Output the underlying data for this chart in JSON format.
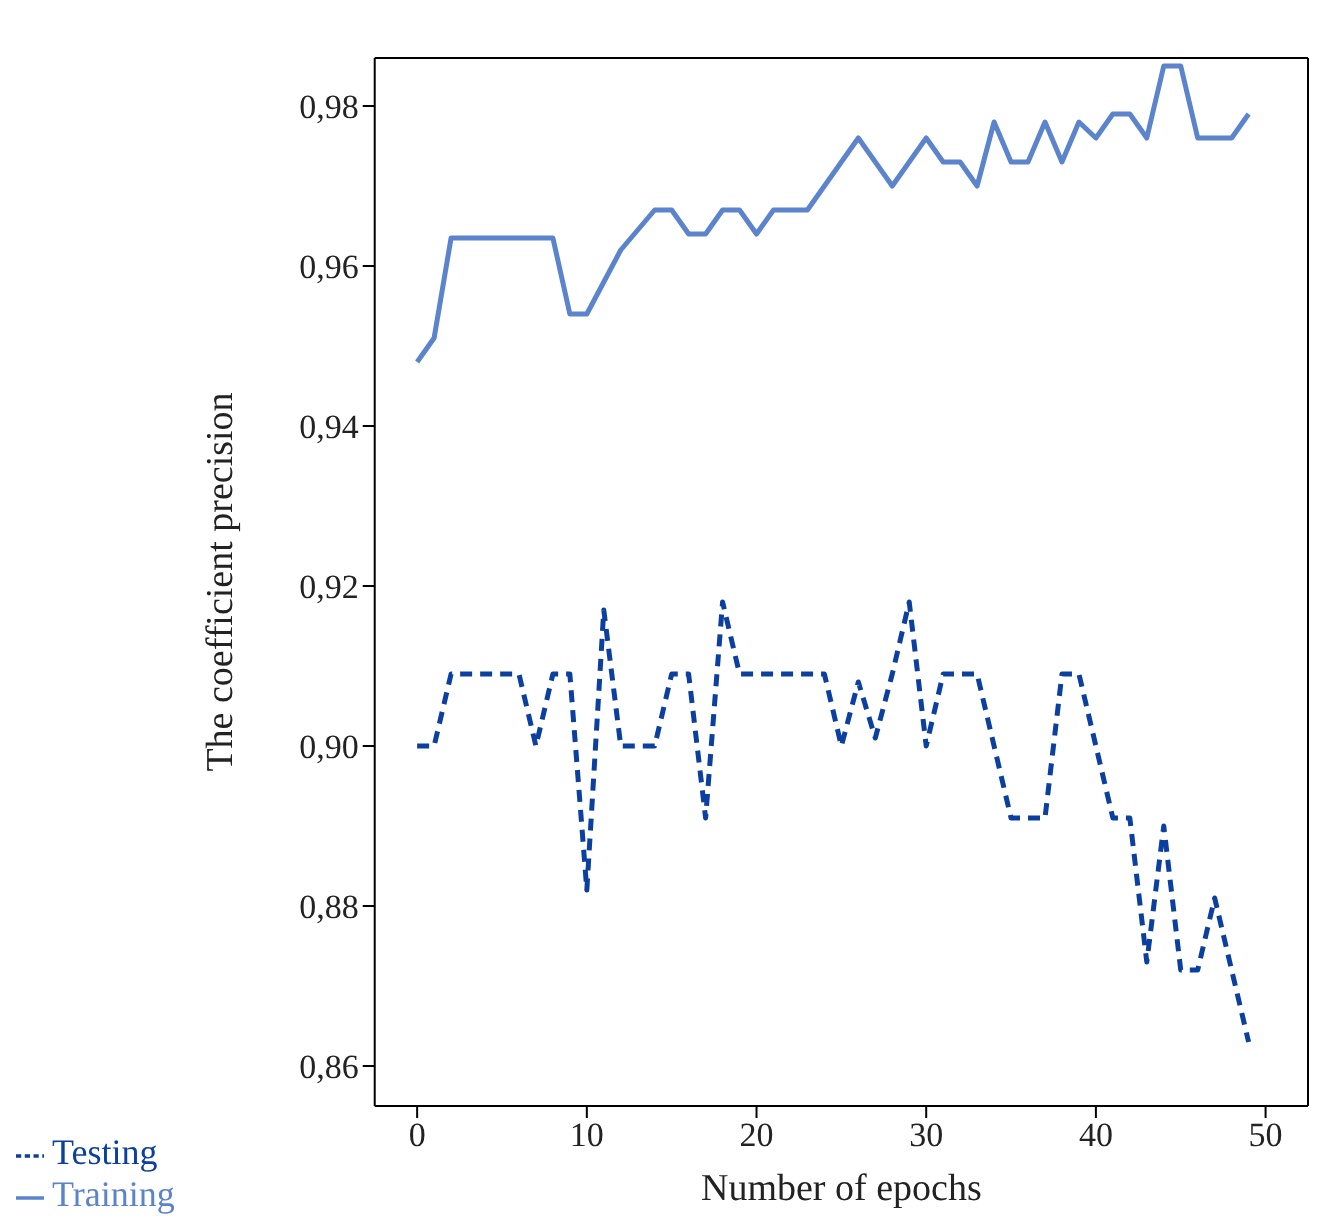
{
  "chart_data": {
    "type": "line",
    "xlabel": "Number of epochs",
    "ylabel": "The coefficient precision",
    "x": [
      0,
      1,
      2,
      3,
      4,
      5,
      6,
      7,
      8,
      9,
      10,
      11,
      12,
      13,
      14,
      15,
      16,
      17,
      18,
      19,
      20,
      21,
      22,
      23,
      24,
      25,
      26,
      27,
      28,
      29,
      30,
      31,
      32,
      33,
      34,
      35,
      36,
      37,
      38,
      39,
      40,
      41,
      42,
      43,
      44,
      45,
      46,
      47,
      48,
      49
    ],
    "series": [
      {
        "name": "Training",
        "color": "#5b84cc",
        "line_style": "solid",
        "values": [
          0.948,
          0.951,
          0.9635,
          0.9635,
          0.9635,
          0.9635,
          0.9635,
          0.9635,
          0.9635,
          0.954,
          0.954,
          0.958,
          0.962,
          0.9645,
          0.967,
          0.967,
          0.964,
          0.964,
          0.967,
          0.967,
          0.964,
          0.967,
          0.967,
          0.967,
          0.97,
          0.973,
          0.976,
          0.973,
          0.97,
          0.973,
          0.976,
          0.973,
          0.973,
          0.97,
          0.978,
          0.973,
          0.973,
          0.978,
          0.973,
          0.978,
          0.976,
          0.979,
          0.979,
          0.976,
          0.985,
          0.985,
          0.976,
          0.976,
          0.976,
          0.979
        ]
      },
      {
        "name": "Testing",
        "color": "#0b3fa0",
        "line_style": "dashed",
        "values": [
          0.9,
          0.9,
          0.909,
          0.909,
          0.909,
          0.909,
          0.909,
          0.9,
          0.909,
          0.909,
          0.882,
          0.917,
          0.9,
          0.9,
          0.9,
          0.909,
          0.909,
          0.891,
          0.918,
          0.909,
          0.909,
          0.909,
          0.909,
          0.909,
          0.909,
          0.9,
          0.908,
          0.901,
          0.909,
          0.918,
          0.9,
          0.909,
          0.909,
          0.909,
          0.9,
          0.891,
          0.891,
          0.891,
          0.909,
          0.909,
          0.9,
          0.891,
          0.891,
          0.873,
          0.89,
          0.872,
          0.872,
          0.881,
          0.872,
          0.863
        ]
      }
    ],
    "xlim": [
      -2.5,
      52.5
    ],
    "xticks": [
      0,
      10,
      20,
      30,
      40,
      50
    ],
    "ylim": [
      0.855,
      0.986
    ],
    "yticks": [
      {
        "value": 0.86,
        "label": "0,86"
      },
      {
        "value": 0.88,
        "label": "0,88"
      },
      {
        "value": 0.9,
        "label": "0,90"
      },
      {
        "value": 0.92,
        "label": "0,92"
      },
      {
        "value": 0.94,
        "label": "0,94"
      },
      {
        "value": 0.96,
        "label": "0,96"
      },
      {
        "value": 0.98,
        "label": "0,98"
      }
    ],
    "grid": false,
    "legend": "bottom left",
    "marker": "none"
  }
}
